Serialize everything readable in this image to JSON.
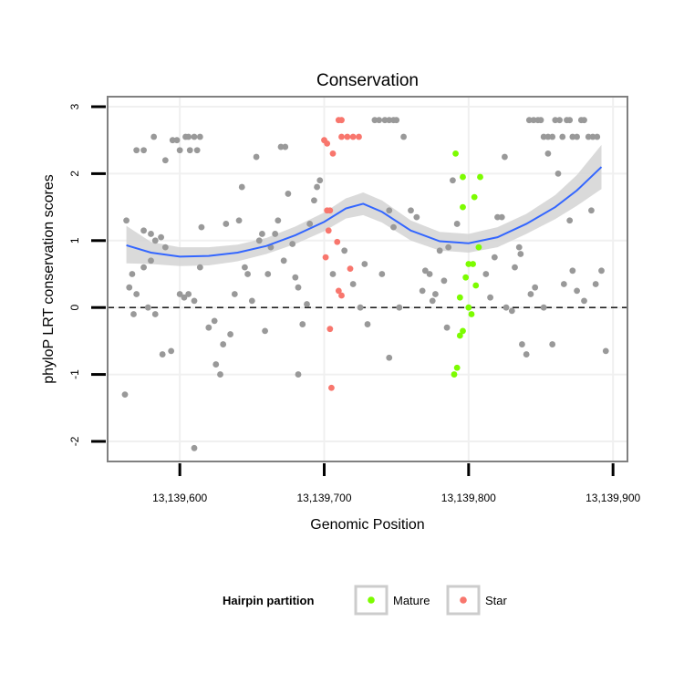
{
  "chart_data": {
    "type": "scatter",
    "title": "Conservation",
    "xlabel": "Genomic Position",
    "ylabel": "phyloP LRT conservation scores",
    "xlim": [
      13139550,
      13139910
    ],
    "ylim": [
      -2.3,
      3.15
    ],
    "x_ticks": [
      13139600,
      13139700,
      13139800,
      13139900
    ],
    "x_tick_labels": [
      "13,139,600",
      "13,139,700",
      "13,139,800",
      "13,139,900"
    ],
    "y_ticks": [
      -2,
      -1,
      0,
      1,
      2,
      3
    ],
    "y_tick_labels": [
      "-2",
      "-1",
      "0",
      "1",
      "2",
      "3"
    ],
    "reference_line": {
      "y": 0,
      "style": "dashed"
    },
    "grid": true,
    "legend": {
      "title": "Hairpin partition",
      "placement": "bottom",
      "entries": [
        {
          "label": "Mature",
          "color": "#7cfc00"
        },
        {
          "label": "Star",
          "color": "#f8766d"
        }
      ]
    },
    "colors": {
      "other": "#999999",
      "mature": "#7cfc00",
      "star": "#f8766d",
      "smooth": "#3366ff",
      "band": "#d3d3d3"
    },
    "series": [
      {
        "name": "Mature",
        "points": [
          [
            13139791,
            2.3
          ],
          [
            13139796,
            1.95
          ],
          [
            13139808,
            1.95
          ],
          [
            13139796,
            1.5
          ],
          [
            13139804,
            1.65
          ],
          [
            13139800,
            0.65
          ],
          [
            13139803,
            0.65
          ],
          [
            13139798,
            0.45
          ],
          [
            13139805,
            0.33
          ],
          [
            13139794,
            0.15
          ],
          [
            13139800,
            0.0
          ],
          [
            13139802,
            -0.1
          ],
          [
            13139796,
            -0.35
          ],
          [
            13139794,
            -0.42
          ],
          [
            13139792,
            -0.9
          ],
          [
            13139790,
            -1.0
          ],
          [
            13139807,
            0.9
          ]
        ]
      },
      {
        "name": "Star",
        "points": [
          [
            13139700,
            2.5
          ],
          [
            13139702,
            2.45
          ],
          [
            13139706,
            2.3
          ],
          [
            13139710,
            2.8
          ],
          [
            13139712,
            2.8
          ],
          [
            13139712,
            2.55
          ],
          [
            13139716,
            2.55
          ],
          [
            13139720,
            2.55
          ],
          [
            13139724,
            2.55
          ],
          [
            13139702,
            1.45
          ],
          [
            13139704,
            1.45
          ],
          [
            13139703,
            1.15
          ],
          [
            13139709,
            0.98
          ],
          [
            13139701,
            0.75
          ],
          [
            13139718,
            0.58
          ],
          [
            13139710,
            0.25
          ],
          [
            13139712,
            0.18
          ],
          [
            13139704,
            -0.32
          ],
          [
            13139705,
            -1.2
          ]
        ]
      }
    ],
    "other_points": [
      [
        13139563,
        1.3
      ],
      [
        13139567,
        0.5
      ],
      [
        13139565,
        0.3
      ],
      [
        13139570,
        0.2
      ],
      [
        13139568,
        -0.1
      ],
      [
        13139575,
        1.15
      ],
      [
        13139580,
        1.1
      ],
      [
        13139583,
        1.0
      ],
      [
        13139587,
        1.05
      ],
      [
        13139590,
        0.9
      ],
      [
        13139570,
        2.35
      ],
      [
        13139575,
        2.35
      ],
      [
        13139582,
        2.55
      ],
      [
        13139590,
        2.2
      ],
      [
        13139595,
        2.5
      ],
      [
        13139598,
        2.5
      ],
      [
        13139600,
        2.35
      ],
      [
        13139604,
        2.55
      ],
      [
        13139606,
        2.55
      ],
      [
        13139610,
        2.55
      ],
      [
        13139614,
        2.55
      ],
      [
        13139607,
        2.35
      ],
      [
        13139612,
        2.35
      ],
      [
        13139575,
        0.6
      ],
      [
        13139580,
        0.7
      ],
      [
        13139578,
        0.0
      ],
      [
        13139583,
        -0.1
      ],
      [
        13139588,
        -0.7
      ],
      [
        13139594,
        -0.65
      ],
      [
        13139600,
        0.2
      ],
      [
        13139603,
        0.15
      ],
      [
        13139606,
        0.2
      ],
      [
        13139610,
        0.1
      ],
      [
        13139614,
        0.6
      ],
      [
        13139615,
        1.2
      ],
      [
        13139620,
        -0.3
      ],
      [
        13139624,
        -0.2
      ],
      [
        13139625,
        -0.85
      ],
      [
        13139628,
        -1.0
      ],
      [
        13139630,
        -0.55
      ],
      [
        13139632,
        1.25
      ],
      [
        13139635,
        -0.4
      ],
      [
        13139638,
        0.2
      ],
      [
        13139641,
        1.3
      ],
      [
        13139643,
        1.8
      ],
      [
        13139645,
        0.6
      ],
      [
        13139647,
        0.5
      ],
      [
        13139650,
        0.1
      ],
      [
        13139653,
        2.25
      ],
      [
        13139655,
        1.0
      ],
      [
        13139657,
        1.1
      ],
      [
        13139659,
        -0.35
      ],
      [
        13139661,
        0.5
      ],
      [
        13139663,
        0.9
      ],
      [
        13139666,
        1.1
      ],
      [
        13139668,
        1.3
      ],
      [
        13139670,
        2.4
      ],
      [
        13139673,
        2.4
      ],
      [
        13139675,
        1.7
      ],
      [
        13139672,
        0.7
      ],
      [
        13139678,
        0.95
      ],
      [
        13139680,
        0.45
      ],
      [
        13139682,
        0.3
      ],
      [
        13139685,
        -0.25
      ],
      [
        13139688,
        0.05
      ],
      [
        13139690,
        1.25
      ],
      [
        13139693,
        1.6
      ],
      [
        13139695,
        1.8
      ],
      [
        13139697,
        1.9
      ],
      [
        13139682,
        -1.0
      ],
      [
        13139706,
        0.5
      ],
      [
        13139714,
        0.85
      ],
      [
        13139720,
        0.35
      ],
      [
        13139725,
        0.0
      ],
      [
        13139728,
        0.65
      ],
      [
        13139730,
        -0.25
      ],
      [
        13139735,
        2.8
      ],
      [
        13139738,
        2.8
      ],
      [
        13139742,
        2.8
      ],
      [
        13139745,
        2.8
      ],
      [
        13139748,
        2.8
      ],
      [
        13139750,
        2.8
      ],
      [
        13139745,
        1.45
      ],
      [
        13139748,
        1.2
      ],
      [
        13139745,
        -0.75
      ],
      [
        13139740,
        0.5
      ],
      [
        13139752,
        0.0
      ],
      [
        13139755,
        2.55
      ],
      [
        13139760,
        1.45
      ],
      [
        13139764,
        1.35
      ],
      [
        13139768,
        0.25
      ],
      [
        13139770,
        0.55
      ],
      [
        13139773,
        0.5
      ],
      [
        13139775,
        0.1
      ],
      [
        13139777,
        0.2
      ],
      [
        13139780,
        0.85
      ],
      [
        13139783,
        0.4
      ],
      [
        13139786,
        0.9
      ],
      [
        13139789,
        1.9
      ],
      [
        13139792,
        1.25
      ],
      [
        13139785,
        -0.3
      ],
      [
        13139812,
        0.5
      ],
      [
        13139815,
        0.15
      ],
      [
        13139818,
        0.75
      ],
      [
        13139820,
        1.35
      ],
      [
        13139823,
        1.35
      ],
      [
        13139825,
        2.25
      ],
      [
        13139826,
        0.0
      ],
      [
        13139830,
        -0.05
      ],
      [
        13139832,
        0.6
      ],
      [
        13139835,
        0.9
      ],
      [
        13139837,
        -0.55
      ],
      [
        13139840,
        -0.7
      ],
      [
        13139842,
        2.8
      ],
      [
        13139845,
        2.8
      ],
      [
        13139848,
        2.8
      ],
      [
        13139850,
        2.8
      ],
      [
        13139852,
        2.55
      ],
      [
        13139855,
        2.55
      ],
      [
        13139858,
        2.55
      ],
      [
        13139860,
        2.8
      ],
      [
        13139863,
        2.8
      ],
      [
        13139865,
        2.55
      ],
      [
        13139868,
        2.8
      ],
      [
        13139870,
        2.8
      ],
      [
        13139872,
        2.55
      ],
      [
        13139875,
        2.55
      ],
      [
        13139878,
        2.8
      ],
      [
        13139880,
        2.8
      ],
      [
        13139883,
        2.55
      ],
      [
        13139886,
        2.55
      ],
      [
        13139889,
        2.55
      ],
      [
        13139885,
        1.45
      ],
      [
        13139870,
        1.3
      ],
      [
        13139862,
        2.0
      ],
      [
        13139855,
        2.3
      ],
      [
        13139852,
        0.0
      ],
      [
        13139846,
        0.3
      ],
      [
        13139843,
        0.2
      ],
      [
        13139866,
        0.35
      ],
      [
        13139872,
        0.55
      ],
      [
        13139875,
        0.25
      ],
      [
        13139880,
        0.1
      ],
      [
        13139888,
        0.35
      ],
      [
        13139892,
        0.55
      ],
      [
        13139895,
        -0.65
      ],
      [
        13139858,
        -0.55
      ],
      [
        13139836,
        0.8
      ],
      [
        13139610,
        -2.1
      ],
      [
        13139562,
        -1.3
      ]
    ],
    "smooth_fit": [
      [
        13139563,
        0.93
      ],
      [
        13139580,
        0.82
      ],
      [
        13139600,
        0.76
      ],
      [
        13139620,
        0.77
      ],
      [
        13139640,
        0.82
      ],
      [
        13139660,
        0.92
      ],
      [
        13139680,
        1.08
      ],
      [
        13139700,
        1.28
      ],
      [
        13139715,
        1.48
      ],
      [
        13139727,
        1.55
      ],
      [
        13139740,
        1.43
      ],
      [
        13139760,
        1.15
      ],
      [
        13139780,
        0.99
      ],
      [
        13139800,
        0.96
      ],
      [
        13139820,
        1.05
      ],
      [
        13139840,
        1.25
      ],
      [
        13139860,
        1.5
      ],
      [
        13139875,
        1.75
      ],
      [
        13139892,
        2.1
      ]
    ],
    "band_upper": [
      [
        13139563,
        1.22
      ],
      [
        13139580,
        0.98
      ],
      [
        13139600,
        0.9
      ],
      [
        13139620,
        0.9
      ],
      [
        13139640,
        0.94
      ],
      [
        13139660,
        1.04
      ],
      [
        13139680,
        1.21
      ],
      [
        13139700,
        1.42
      ],
      [
        13139715,
        1.63
      ],
      [
        13139727,
        1.72
      ],
      [
        13139740,
        1.6
      ],
      [
        13139760,
        1.3
      ],
      [
        13139780,
        1.13
      ],
      [
        13139800,
        1.1
      ],
      [
        13139820,
        1.2
      ],
      [
        13139840,
        1.4
      ],
      [
        13139860,
        1.68
      ],
      [
        13139875,
        1.98
      ],
      [
        13139892,
        2.43
      ]
    ],
    "band_lower": [
      [
        13139563,
        0.66
      ],
      [
        13139580,
        0.65
      ],
      [
        13139600,
        0.62
      ],
      [
        13139620,
        0.63
      ],
      [
        13139640,
        0.69
      ],
      [
        13139660,
        0.8
      ],
      [
        13139680,
        0.95
      ],
      [
        13139700,
        1.14
      ],
      [
        13139715,
        1.33
      ],
      [
        13139727,
        1.38
      ],
      [
        13139740,
        1.27
      ],
      [
        13139760,
        1.0
      ],
      [
        13139780,
        0.85
      ],
      [
        13139800,
        0.82
      ],
      [
        13139820,
        0.9
      ],
      [
        13139840,
        1.1
      ],
      [
        13139860,
        1.32
      ],
      [
        13139875,
        1.52
      ],
      [
        13139892,
        1.77
      ]
    ]
  }
}
